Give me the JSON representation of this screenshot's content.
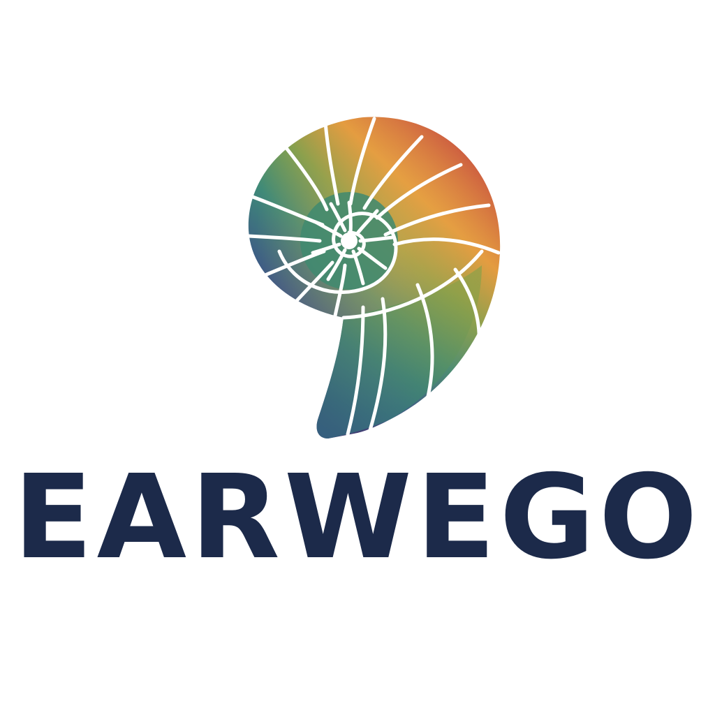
{
  "logo": {
    "name": "EARWEGO",
    "mark_icon": "nautilus-shell-icon",
    "colors": {
      "wordmark": "#1c2a4a",
      "background": "#ffffff",
      "shell_gradient": [
        "#c8503f",
        "#e39a3f",
        "#7f9f4e",
        "#3f8a78",
        "#3d5a86",
        "#43366e"
      ]
    }
  }
}
